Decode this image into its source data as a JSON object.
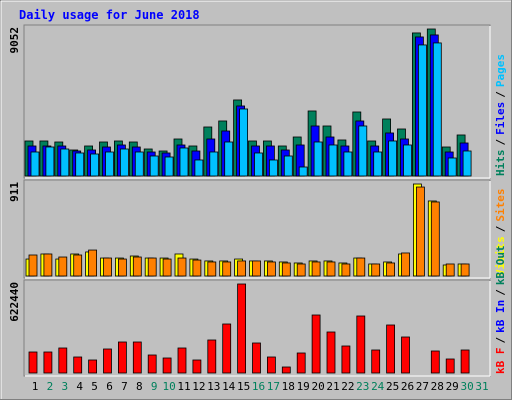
{
  "title": "Daily usage for June 2018",
  "legend_separator": "/",
  "chart_data": [
    {
      "type": "bar",
      "categories": [
        "1",
        "2",
        "3",
        "4",
        "5",
        "6",
        "7",
        "8",
        "9",
        "10",
        "11",
        "12",
        "13",
        "14",
        "15",
        "16",
        "17",
        "18",
        "19",
        "20",
        "21",
        "22",
        "23",
        "24",
        "25",
        "26",
        "27",
        "28",
        "29",
        "30",
        "31"
      ],
      "category_colors": [
        "#000000",
        "#00805c",
        "#00805c",
        "#000000",
        "#000000",
        "#000000",
        "#000000",
        "#000000",
        "#00805c",
        "#00805c",
        "#000000",
        "#000000",
        "#000000",
        "#000000",
        "#000000",
        "#00805c",
        "#00805c",
        "#000000",
        "#000000",
        "#000000",
        "#000000",
        "#000000",
        "#00805c",
        "#00805c",
        "#000000",
        "#000000",
        "#000000",
        "#000000",
        "#000000",
        "#00805c",
        "#00805c"
      ],
      "ylim": [
        0,
        9052
      ],
      "yticks": [
        9052
      ],
      "series": [
        {
          "name": "Hits",
          "color": "#00805c",
          "values": [
            2156,
            2156,
            2094,
            1602,
            1848,
            2094,
            2156,
            2094,
            1663,
            1540,
            2279,
            1848,
            3018,
            3388,
            4682,
            2156,
            2156,
            1848,
            2402,
            4004,
            3080,
            2218,
            3942,
            2156,
            3511,
            2895,
            8809,
            9052,
            1786,
            2526,
            null
          ]
        },
        {
          "name": "Files",
          "color": "#0000ff",
          "values": [
            1848,
            1848,
            1848,
            1540,
            1602,
            1786,
            1910,
            1786,
            1478,
            1417,
            1910,
            1540,
            2279,
            2772,
            4312,
            1848,
            1848,
            1602,
            1910,
            3080,
            2402,
            1848,
            3388,
            1848,
            2649,
            2279,
            8562,
            8686,
            1478,
            2033,
            null
          ]
        },
        {
          "name": "Pages",
          "color": "#00c0ff",
          "values": [
            1478,
            1786,
            1663,
            1417,
            1355,
            1478,
            1663,
            1478,
            1232,
            1170,
            1725,
            986,
            1478,
            2094,
            4127,
            1417,
            986,
            1232,
            554,
            2094,
            1910,
            1478,
            3080,
            1478,
            2156,
            1910,
            8070,
            8193,
            1109,
            1540,
            null
          ]
        }
      ]
    },
    {
      "type": "bar",
      "ylim": [
        0,
        911
      ],
      "yticks": [
        911
      ],
      "series": [
        {
          "name": "Visits",
          "color": "#ffff00",
          "values": [
            168,
            218,
            168,
            218,
            238,
            178,
            178,
            198,
            178,
            178,
            218,
            168,
            149,
            149,
            168,
            149,
            149,
            139,
            129,
            149,
            149,
            129,
            178,
            119,
            139,
            218,
            911,
            743,
            109,
            119,
            null
          ]
        },
        {
          "name": "Sites",
          "color": "#ff8000",
          "values": [
            208,
            218,
            188,
            208,
            257,
            178,
            168,
            188,
            178,
            168,
            178,
            158,
            139,
            139,
            149,
            149,
            139,
            129,
            119,
            139,
            139,
            119,
            178,
            119,
            129,
            228,
            881,
            733,
            119,
            119,
            null
          ]
        }
      ]
    },
    {
      "type": "bar",
      "ylim": [
        0,
        622440
      ],
      "yticks": [
        622440
      ],
      "series": [
        {
          "name": "kB F",
          "color": "#ff0000",
          "values": [
            146874,
            146874,
            174850,
            111904,
            90922,
            167856,
            216814,
            216814,
            125892,
            104910,
            174850,
            90922,
            230802,
            342706,
            622440,
            209820,
            111904,
            41964,
            139880,
            405652,
            286754,
            188838,
            398658,
            160862,
            335712,
            251784,
            0,
            153868,
            97916,
            160862,
            null
          ]
        },
        {
          "name": "kB In",
          "color": "#0000ff",
          "values": [
            0,
            0,
            0,
            0,
            0,
            0,
            0,
            0,
            0,
            0,
            0,
            0,
            0,
            0,
            0,
            0,
            0,
            0,
            0,
            0,
            0,
            0,
            0,
            0,
            0,
            0,
            0,
            0,
            0,
            0,
            null
          ]
        },
        {
          "name": "kB Out",
          "color": "#00805c",
          "values": [
            0,
            0,
            0,
            0,
            0,
            0,
            0,
            0,
            0,
            0,
            0,
            0,
            0,
            0,
            0,
            0,
            0,
            0,
            0,
            0,
            0,
            0,
            0,
            0,
            0,
            0,
            0,
            0,
            0,
            0,
            null
          ]
        }
      ]
    }
  ]
}
